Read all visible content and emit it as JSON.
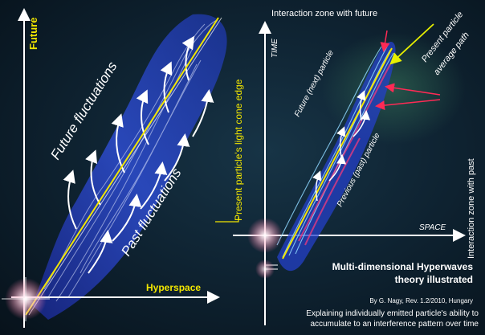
{
  "left_panel": {
    "axis_y_label": "Future",
    "axis_x_label": "Hyperspace",
    "future_fluctuations": "Future fluctuations",
    "past_fluctuations": "Past fluctuations",
    "light_cone_edge": "Present particle's light cone edge"
  },
  "right_panel": {
    "time_label": "TIME",
    "space_label": "SPACE",
    "future_particle": "Future (next) particle",
    "previous_particle": "Previous (past) particle",
    "interaction_future": "Interaction zone with future",
    "interaction_past": "Interaction zone with past",
    "average_path_line1": "Present particle",
    "average_path_line2": "average path"
  },
  "caption": {
    "title_line1": "Multi-dimensional Hyperwaves",
    "title_line2": "theory illustrated",
    "author": "By G. Nagy, Rev. 1.2/2010, Hungary",
    "desc_line1": "Explaining individually emitted particle's ability to",
    "desc_line2": "accumulate to an interference pattern over time"
  },
  "colors": {
    "wave_blue": "#2f4fd8",
    "accent_yellow": "#f2e600",
    "arrow_red": "#ff2a55",
    "arrow_yellow_green": "#e8f000"
  }
}
